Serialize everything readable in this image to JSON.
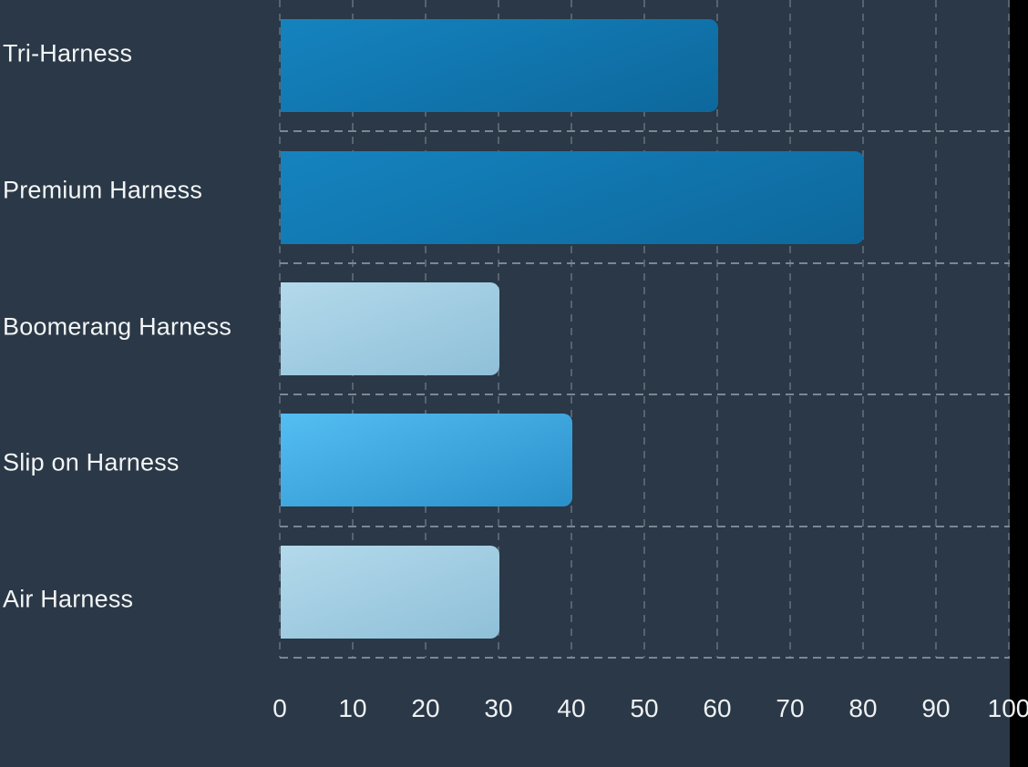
{
  "chart_data": {
    "type": "bar",
    "orientation": "horizontal",
    "title": "",
    "xlabel": "",
    "ylabel": "",
    "categories": [
      "Tri-Harness",
      "Premium Harness",
      "Boomerang Harness",
      "Slip on Harness",
      "Air Harness"
    ],
    "values": [
      60,
      80,
      30,
      40,
      30
    ],
    "xlim": [
      0,
      100
    ],
    "xticks": [
      "0",
      "10",
      "20",
      "30",
      "40",
      "50",
      "60",
      "70",
      "80",
      "90",
      "100"
    ],
    "grid": true,
    "grid_style": "dashed",
    "legend": false,
    "bar_gradients": [
      {
        "from": "#1583bf",
        "to": "#0d689c"
      },
      {
        "from": "#1583bf",
        "to": "#0d689c"
      },
      {
        "from": "#b3d9eb",
        "to": "#8fc0d8"
      },
      {
        "from": "#54bdf2",
        "to": "#2a90ca"
      },
      {
        "from": "#b3d9eb",
        "to": "#8fc0d8"
      }
    ]
  },
  "colors": {
    "background": "#2a3847",
    "right_strip": "#000000",
    "label_text": "#f3f5f6",
    "tick_text": "#eef1f3",
    "grid_horizontal": "#7b8894",
    "grid_vertical": "#57636f"
  }
}
